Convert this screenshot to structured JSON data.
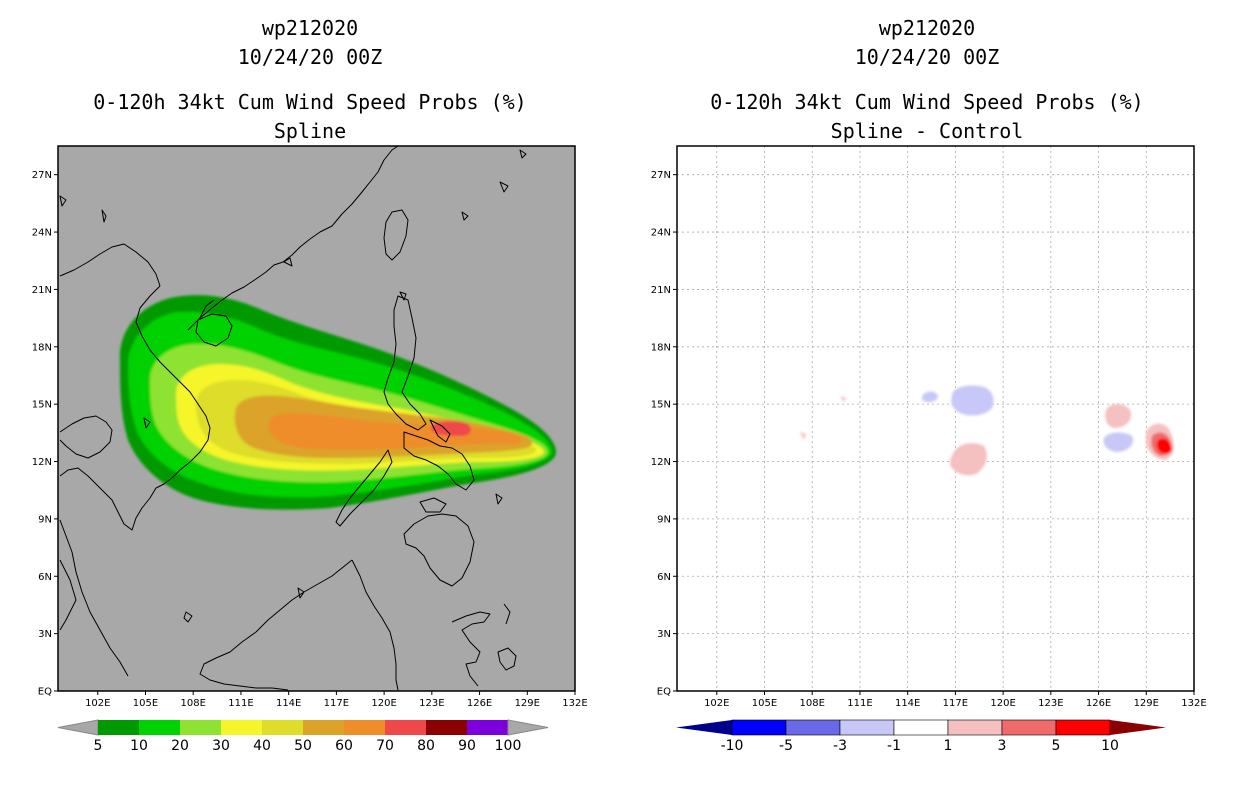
{
  "left_panel": {
    "title_lines": [
      "wp212020",
      "10/24/20 00Z",
      "0-120h 34kt Cum Wind Speed Probs (%)",
      "Spline"
    ],
    "background": "#a8a8a8",
    "colorbar": {
      "colors": [
        "#009a00",
        "#00d100",
        "#8ee232",
        "#f5f52c",
        "#dddd2a",
        "#dca32b",
        "#ee8d2a",
        "#f04848",
        "#8b0000",
        "#7c00dc"
      ],
      "labels": [
        "5",
        "10",
        "20",
        "30",
        "40",
        "50",
        "60",
        "70",
        "80",
        "90",
        "100"
      ]
    }
  },
  "right_panel": {
    "title_lines": [
      "wp212020",
      "10/24/20 00Z",
      "0-120h 34kt Cum Wind Speed Probs (%)",
      "Spline - Control"
    ],
    "background": "#ffffff",
    "colorbar": {
      "colors": [
        "#0000ff",
        "#6a6ae8",
        "#c8c8f8",
        "#ffffff",
        "#f5c0c0",
        "#f06a6a",
        "#ff0000"
      ],
      "labels": [
        "-10",
        "-5",
        "-3",
        "-1",
        "1",
        "3",
        "5",
        "10"
      ],
      "end_colors": [
        "#00008b",
        "#8b0000"
      ]
    }
  },
  "axes": {
    "x_ticks": [
      {
        "lon": 102,
        "label": "102E"
      },
      {
        "lon": 105,
        "label": "105E"
      },
      {
        "lon": 108,
        "label": "108E"
      },
      {
        "lon": 111,
        "label": "111E"
      },
      {
        "lon": 114,
        "label": "114E"
      },
      {
        "lon": 117,
        "label": "117E"
      },
      {
        "lon": 120,
        "label": "120E"
      },
      {
        "lon": 123,
        "label": "123E"
      },
      {
        "lon": 126,
        "label": "126E"
      },
      {
        "lon": 129,
        "label": "129E"
      },
      {
        "lon": 132,
        "label": "132E"
      }
    ],
    "y_ticks": [
      {
        "lat": 0,
        "label": "EQ"
      },
      {
        "lat": 3,
        "label": "3N"
      },
      {
        "lat": 6,
        "label": "6N"
      },
      {
        "lat": 9,
        "label": "9N"
      },
      {
        "lat": 12,
        "label": "12N"
      },
      {
        "lat": 15,
        "label": "15N"
      },
      {
        "lat": 18,
        "label": "18N"
      },
      {
        "lat": 21,
        "label": "21N"
      },
      {
        "lat": 24,
        "label": "24N"
      },
      {
        "lat": 27,
        "label": "27N"
      }
    ],
    "lon_range": [
      99.5,
      132.0
    ],
    "lat_range": [
      0.0,
      28.5
    ]
  }
}
